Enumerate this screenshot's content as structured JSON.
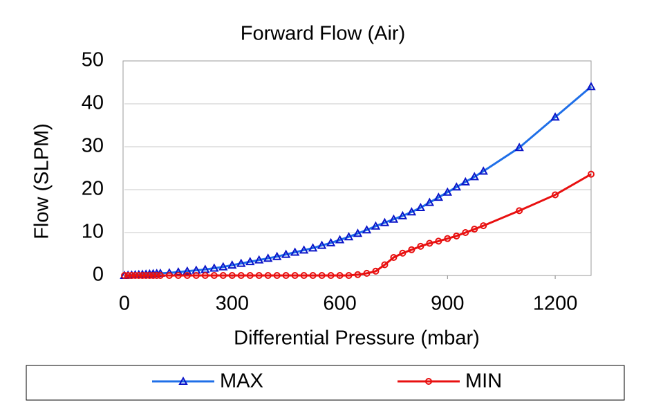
{
  "chart_data": {
    "type": "line",
    "title": "Forward Flow (Air)",
    "xlabel": "Differential Pressure (mbar)",
    "ylabel": "Flow (SLPM)",
    "x": [
      0,
      10,
      20,
      30,
      40,
      50,
      60,
      70,
      80,
      90,
      100,
      125,
      150,
      175,
      200,
      225,
      250,
      275,
      300,
      325,
      350,
      375,
      400,
      425,
      450,
      475,
      500,
      525,
      550,
      575,
      600,
      625,
      650,
      675,
      700,
      725,
      750,
      775,
      800,
      825,
      850,
      875,
      900,
      925,
      950,
      975,
      1000,
      1100,
      1200,
      1300
    ],
    "series": [
      {
        "name": "MAX",
        "color": "#1f6fe8",
        "marker_color": "#0a14c8",
        "marker": "triangle",
        "values": [
          0,
          0.05,
          0.1,
          0.15,
          0.2,
          0.25,
          0.3,
          0.35,
          0.4,
          0.45,
          0.5,
          0.6,
          0.8,
          1,
          1.2,
          1.4,
          1.7,
          2,
          2.4,
          2.8,
          3.2,
          3.6,
          4,
          4.4,
          4.9,
          5.4,
          5.9,
          6.4,
          7,
          7.6,
          8.3,
          9,
          9.8,
          10.6,
          11.5,
          12.3,
          13.1,
          13.9,
          14.8,
          15.8,
          17,
          18.2,
          19.4,
          20.6,
          21.8,
          23,
          24.3,
          29.8,
          36.9,
          44
        ]
      },
      {
        "name": "MIN",
        "color": "#e81010",
        "marker_color": "#e81010",
        "marker": "circle",
        "values": [
          0,
          0,
          0,
          0,
          0,
          0,
          0,
          0,
          0,
          0,
          0,
          0,
          0,
          0,
          0,
          0,
          0,
          0,
          0,
          0,
          0,
          0,
          0,
          0,
          0,
          0,
          0,
          0,
          0,
          0,
          0,
          0,
          0.2,
          0.5,
          1,
          2.5,
          4.2,
          5.2,
          6,
          6.8,
          7.5,
          8,
          8.6,
          9.2,
          10,
          10.8,
          11.6,
          15.1,
          18.8,
          23.6
        ]
      }
    ],
    "xlim": [
      0,
      1300
    ],
    "xticks": [
      0,
      300,
      600,
      900,
      1200
    ],
    "ylim": [
      0,
      50
    ],
    "yticks": [
      0,
      10,
      20,
      30,
      40,
      50
    ],
    "grid": true,
    "legend": "bottom"
  }
}
